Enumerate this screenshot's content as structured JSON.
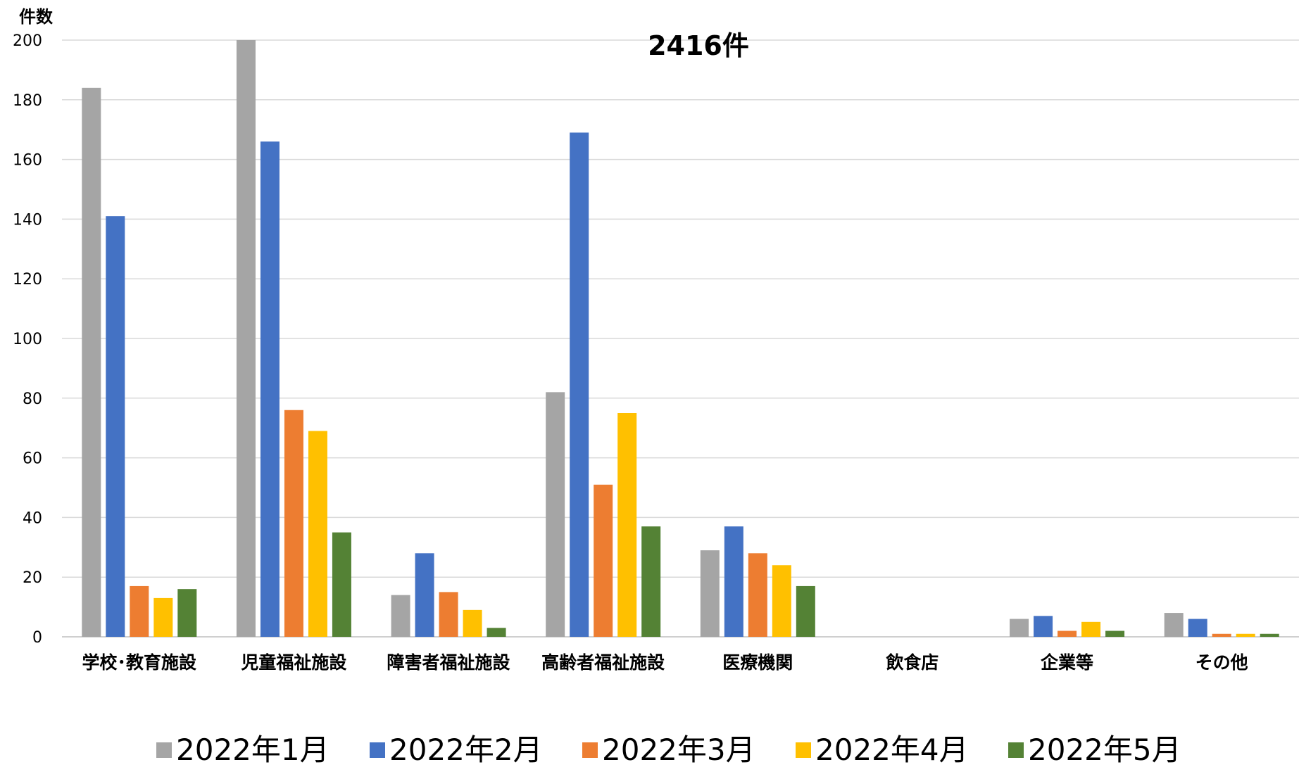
{
  "chart_data": {
    "type": "bar",
    "title": "2416件",
    "ylabel": "件数",
    "xlabel": "",
    "ylim": [
      0,
      200
    ],
    "yticks": [
      0,
      20,
      40,
      60,
      80,
      100,
      120,
      140,
      160,
      180,
      200
    ],
    "grid": true,
    "legend_position": "bottom",
    "categories": [
      "学校･教育施設",
      "児童福祉施設",
      "障害者福祉施設",
      "高齢者福祉施設",
      "医療機関",
      "飲食店",
      "企業等",
      "その他"
    ],
    "series": [
      {
        "name": "2022年1月",
        "color": "#a5a5a5",
        "values": [
          184,
          200,
          14,
          82,
          29,
          0,
          6,
          8
        ]
      },
      {
        "name": "2022年2月",
        "color": "#4472c4",
        "values": [
          141,
          166,
          28,
          169,
          37,
          0,
          7,
          6
        ]
      },
      {
        "name": "2022年3月",
        "color": "#ed7d31",
        "values": [
          17,
          76,
          15,
          51,
          28,
          0,
          2,
          1
        ]
      },
      {
        "name": "2022年4月",
        "color": "#ffc000",
        "values": [
          13,
          69,
          9,
          75,
          24,
          0,
          5,
          1
        ]
      },
      {
        "name": "2022年5月",
        "color": "#548235",
        "values": [
          16,
          35,
          3,
          37,
          17,
          0,
          2,
          1
        ]
      }
    ]
  }
}
